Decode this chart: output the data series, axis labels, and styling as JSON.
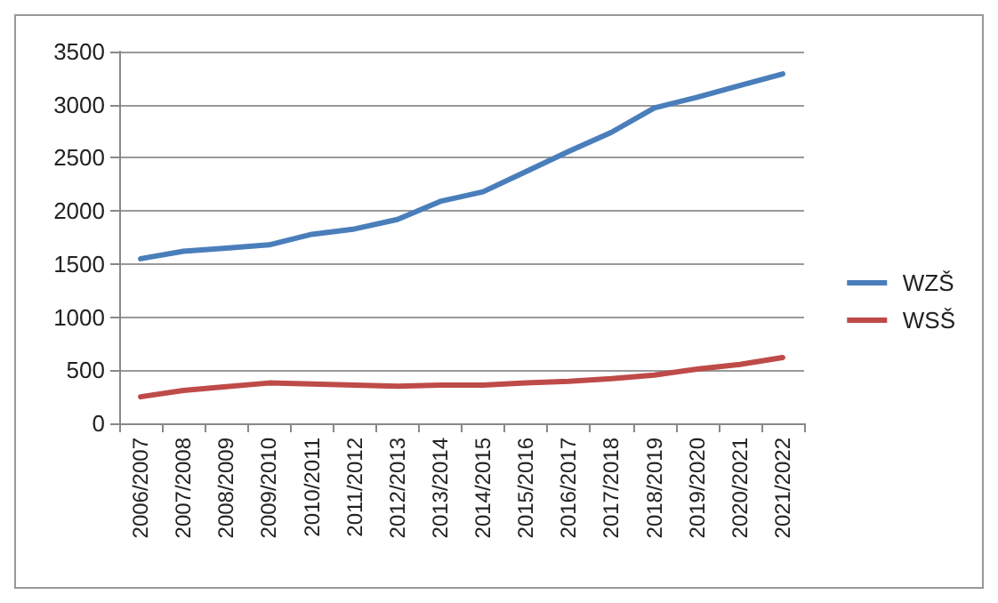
{
  "chart_data": {
    "type": "line",
    "categories": [
      "2006/2007",
      "2007/2008",
      "2008/2009",
      "2009/2010",
      "2010/2011",
      "2011/2012",
      "2012/2013",
      "2013/2014",
      "2014/2015",
      "2015/2016",
      "2016/2017",
      "2017/2018",
      "2018/2019",
      "2019/2020",
      "2020/2021",
      "2021/2022"
    ],
    "series": [
      {
        "name": "WZŠ",
        "color": "#4a7ebb",
        "values": [
          1550,
          1620,
          1650,
          1680,
          1780,
          1830,
          1920,
          2090,
          2180,
          2370,
          2560,
          2740,
          2970,
          3070,
          3180,
          3290
        ]
      },
      {
        "name": "WSŠ",
        "color": "#be4b48",
        "values": [
          250,
          310,
          345,
          380,
          370,
          360,
          350,
          360,
          360,
          380,
          395,
          420,
          455,
          510,
          555,
          620
        ]
      }
    ],
    "ylim": [
      0,
      3500
    ],
    "yticks": [
      0,
      500,
      1000,
      1500,
      2000,
      2500,
      3000,
      3500
    ],
    "grid": "y",
    "legend": "right",
    "marker": "none"
  }
}
